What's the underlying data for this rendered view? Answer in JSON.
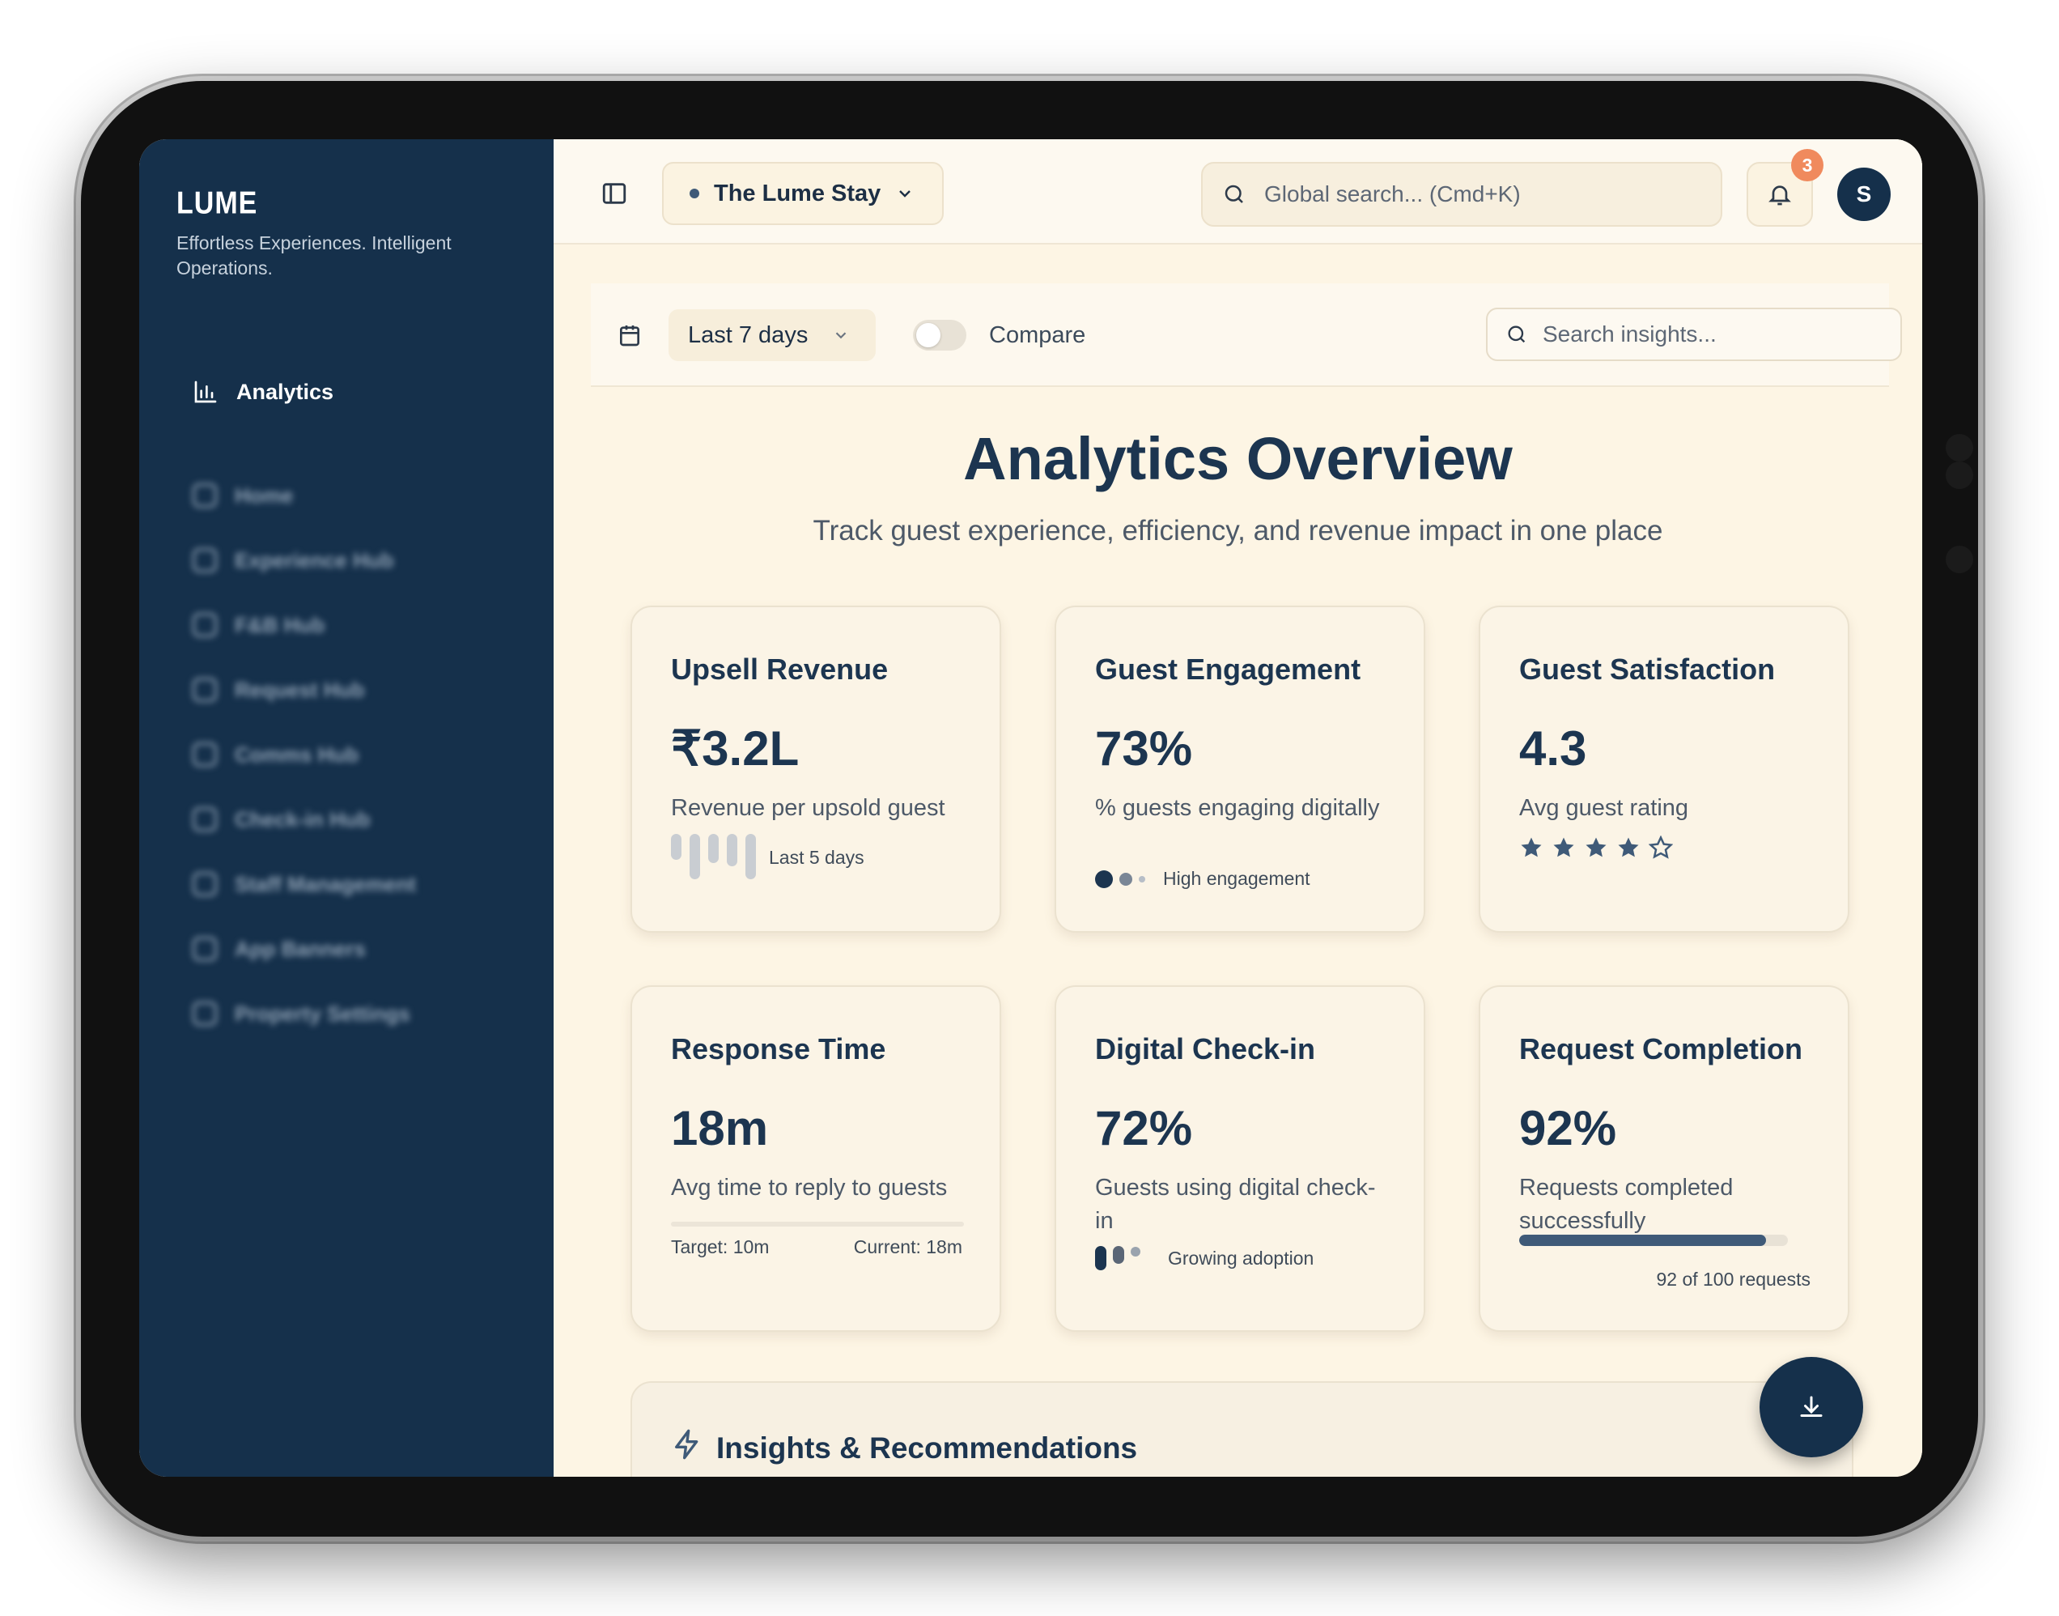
{
  "brand": {
    "logo": "LUME",
    "tagline": "Effortless Experiences. Intelligent Operations."
  },
  "sidebar": {
    "active_item": "Analytics",
    "items": [
      {
        "label": "Home",
        "icon": "home-icon"
      },
      {
        "label": "Experience Hub",
        "icon": "sparkle-icon"
      },
      {
        "label": "F&B Hub",
        "icon": "coffee-icon"
      },
      {
        "label": "Request Hub",
        "icon": "clock-icon"
      },
      {
        "label": "Comms Hub",
        "icon": "chat-icon"
      },
      {
        "label": "Check-in Hub",
        "icon": "user-check-icon"
      },
      {
        "label": "Staff Management",
        "icon": "users-icon"
      },
      {
        "label": "App Banners",
        "icon": "image-icon"
      },
      {
        "label": "Property Settings",
        "icon": "gear-icon"
      }
    ]
  },
  "topbar": {
    "property": "The Lume Stay",
    "search_placeholder": "Global search... (Cmd+K)",
    "notification_count": "3",
    "avatar_initial": "S"
  },
  "filters": {
    "date_range": "Last 7 days",
    "compare_label": "Compare",
    "compare_on": false,
    "search_placeholder": "Search insights..."
  },
  "page": {
    "title": "Analytics Overview",
    "subtitle": "Track guest experience, efficiency, and revenue impact in one place"
  },
  "cards": [
    {
      "title": "Upsell Revenue",
      "value": "₹3.2L",
      "desc": "Revenue per upsold guest",
      "foot": "Last 5 days"
    },
    {
      "title": "Guest Engagement",
      "value": "73%",
      "desc": "% guests engaging digitally",
      "foot": "High engagement"
    },
    {
      "title": "Guest Satisfaction",
      "value": "4.3",
      "desc": "Avg guest rating",
      "rating": 4,
      "rating_max": 5
    },
    {
      "title": "Response Time",
      "value": "18m",
      "desc": "Avg time to reply to guests",
      "target": "Target: 10m",
      "current": "Current: 18m"
    },
    {
      "title": "Digital Check-in",
      "value": "72%",
      "desc": "Guests using digital check-in",
      "foot": "Growing adoption"
    },
    {
      "title": "Request Completion",
      "value": "92%",
      "desc": "Requests completed successfully",
      "progress": 0.92,
      "foot": "92 of 100 requests"
    }
  ],
  "insights": {
    "title": "Insights & Recommendations"
  },
  "colors": {
    "sidebar": "#15304b",
    "accent": "#3f5a78",
    "background": "#fdf5e4",
    "badge": "#f08a5d"
  }
}
